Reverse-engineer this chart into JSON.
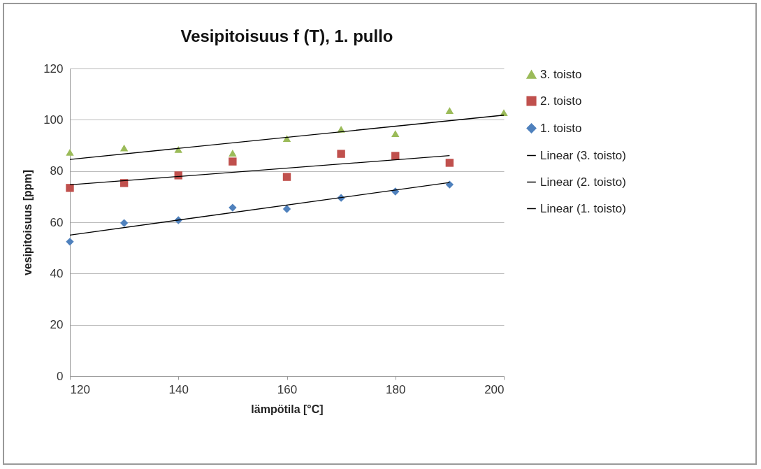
{
  "chart_data": {
    "type": "scatter",
    "title": "Vesipitoisuus f (T), 1. pullo",
    "xlabel": "lämpötila [°C]",
    "ylabel": "vesipitoisuus [ppm]",
    "x": [
      120,
      130,
      140,
      150,
      160,
      170,
      180,
      190,
      200
    ],
    "series": [
      {
        "name": "3. toisto",
        "color": "#9bbb59",
        "marker": "triangle",
        "values": [
          87.3,
          89,
          88.4,
          87,
          92.7,
          96.3,
          94.6,
          103.6,
          102.8
        ]
      },
      {
        "name": "2. toisto",
        "color": "#c0504d",
        "marker": "square",
        "x": [
          120,
          130,
          140,
          150,
          160,
          170,
          180,
          190
        ],
        "values": [
          73.4,
          75.3,
          78.3,
          83.7,
          77.7,
          86.7,
          85.9,
          83.2
        ]
      },
      {
        "name": "1. toisto",
        "color": "#4f81bd",
        "marker": "diamond",
        "x": [
          120,
          130,
          140,
          150,
          160,
          170,
          180,
          190
        ],
        "values": [
          52.4,
          59.7,
          60.8,
          65.7,
          65.2,
          69.5,
          72,
          74.7
        ]
      },
      {
        "name": "Linear (3. toisto)",
        "type": "line",
        "color": "#000000",
        "marker": "none",
        "line_style": "solid",
        "x": [
          120,
          200
        ],
        "values": [
          84.5,
          101.8
        ]
      },
      {
        "name": "Linear (2. toisto)",
        "type": "line",
        "color": "#000000",
        "marker": "none",
        "line_style": "solid",
        "x": [
          120,
          190
        ],
        "values": [
          74.6,
          86
        ]
      },
      {
        "name": "Linear (1. toisto)",
        "type": "line",
        "color": "#000000",
        "marker": "none",
        "line_style": "solid",
        "x": [
          120,
          190
        ],
        "values": [
          55,
          75.5
        ]
      }
    ],
    "xlim": [
      120,
      200
    ],
    "xticks": [
      120,
      140,
      160,
      180,
      200
    ],
    "ylim": [
      0,
      120
    ],
    "yticks": [
      0,
      20,
      40,
      60,
      80,
      100,
      120
    ],
    "grid": "y",
    "legend": "right"
  }
}
